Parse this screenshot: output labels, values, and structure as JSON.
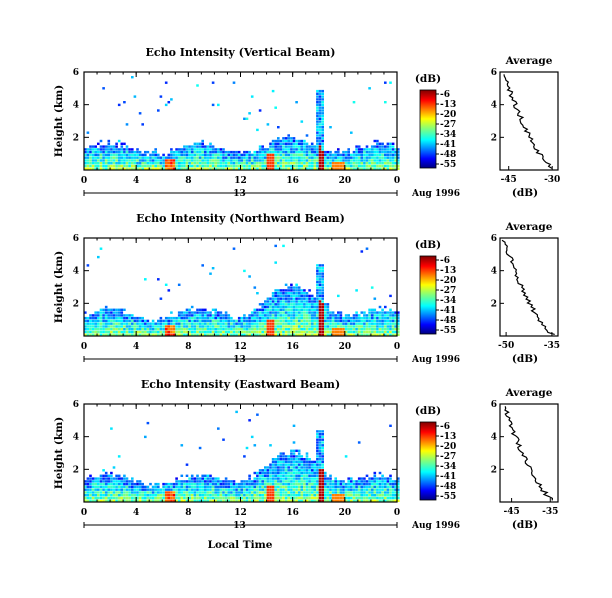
{
  "figure": {
    "date_label": "Aug 1996",
    "day_label": "13",
    "xlabel": "Local Time"
  },
  "chart_data": [
    {
      "type": "heatmap",
      "title": "Echo Intensity (Vertical Beam)",
      "ylabel": "Height (km)",
      "yticks": [
        "6",
        "4",
        "2"
      ],
      "xticks": [
        "0",
        "4",
        "8",
        "12",
        "16",
        "20",
        "0"
      ],
      "xlim": [
        0,
        24
      ],
      "ylim": [
        0,
        6
      ],
      "colorbar": {
        "unit": "(dB)",
        "ticks": [
          "-6",
          "-13",
          "-20",
          "-27",
          "-34",
          "-41",
          "-48",
          "-55"
        ]
      },
      "average": {
        "title": "Average",
        "xlabel": "(dB)",
        "xticks": [
          "-45",
          "-30"
        ],
        "yticks": [
          "6",
          "4",
          "2"
        ],
        "xlim": [
          -48,
          -28
        ]
      }
    },
    {
      "type": "heatmap",
      "title": "Echo Intensity (Northward Beam)",
      "ylabel": "Height (km)",
      "yticks": [
        "6",
        "4",
        "2"
      ],
      "xticks": [
        "0",
        "4",
        "8",
        "12",
        "16",
        "20",
        "0"
      ],
      "xlim": [
        0,
        24
      ],
      "ylim": [
        0,
        6
      ],
      "colorbar": {
        "unit": "(dB)",
        "ticks": [
          "-6",
          "-13",
          "-20",
          "-27",
          "-34",
          "-41",
          "-48",
          "-55"
        ]
      },
      "average": {
        "title": "Average",
        "xlabel": "(dB)",
        "xticks": [
          "-50",
          "-35"
        ],
        "yticks": [
          "6",
          "4",
          "2"
        ],
        "xlim": [
          -52,
          -33
        ]
      }
    },
    {
      "type": "heatmap",
      "title": "Echo Intensity (Eastward Beam)",
      "ylabel": "Height (km)",
      "yticks": [
        "6",
        "4",
        "2"
      ],
      "xticks": [
        "0",
        "4",
        "8",
        "12",
        "16",
        "20",
        "0"
      ],
      "xlim": [
        0,
        24
      ],
      "ylim": [
        0,
        6
      ],
      "colorbar": {
        "unit": "(dB)",
        "ticks": [
          "-6",
          "-13",
          "-20",
          "-27",
          "-34",
          "-41",
          "-48",
          "-55"
        ]
      },
      "average": {
        "title": "Average",
        "xlabel": "(dB)",
        "xticks": [
          "-45",
          "-35"
        ],
        "yticks": [
          "6",
          "4",
          "2"
        ],
        "xlim": [
          -48,
          -33
        ]
      }
    }
  ]
}
